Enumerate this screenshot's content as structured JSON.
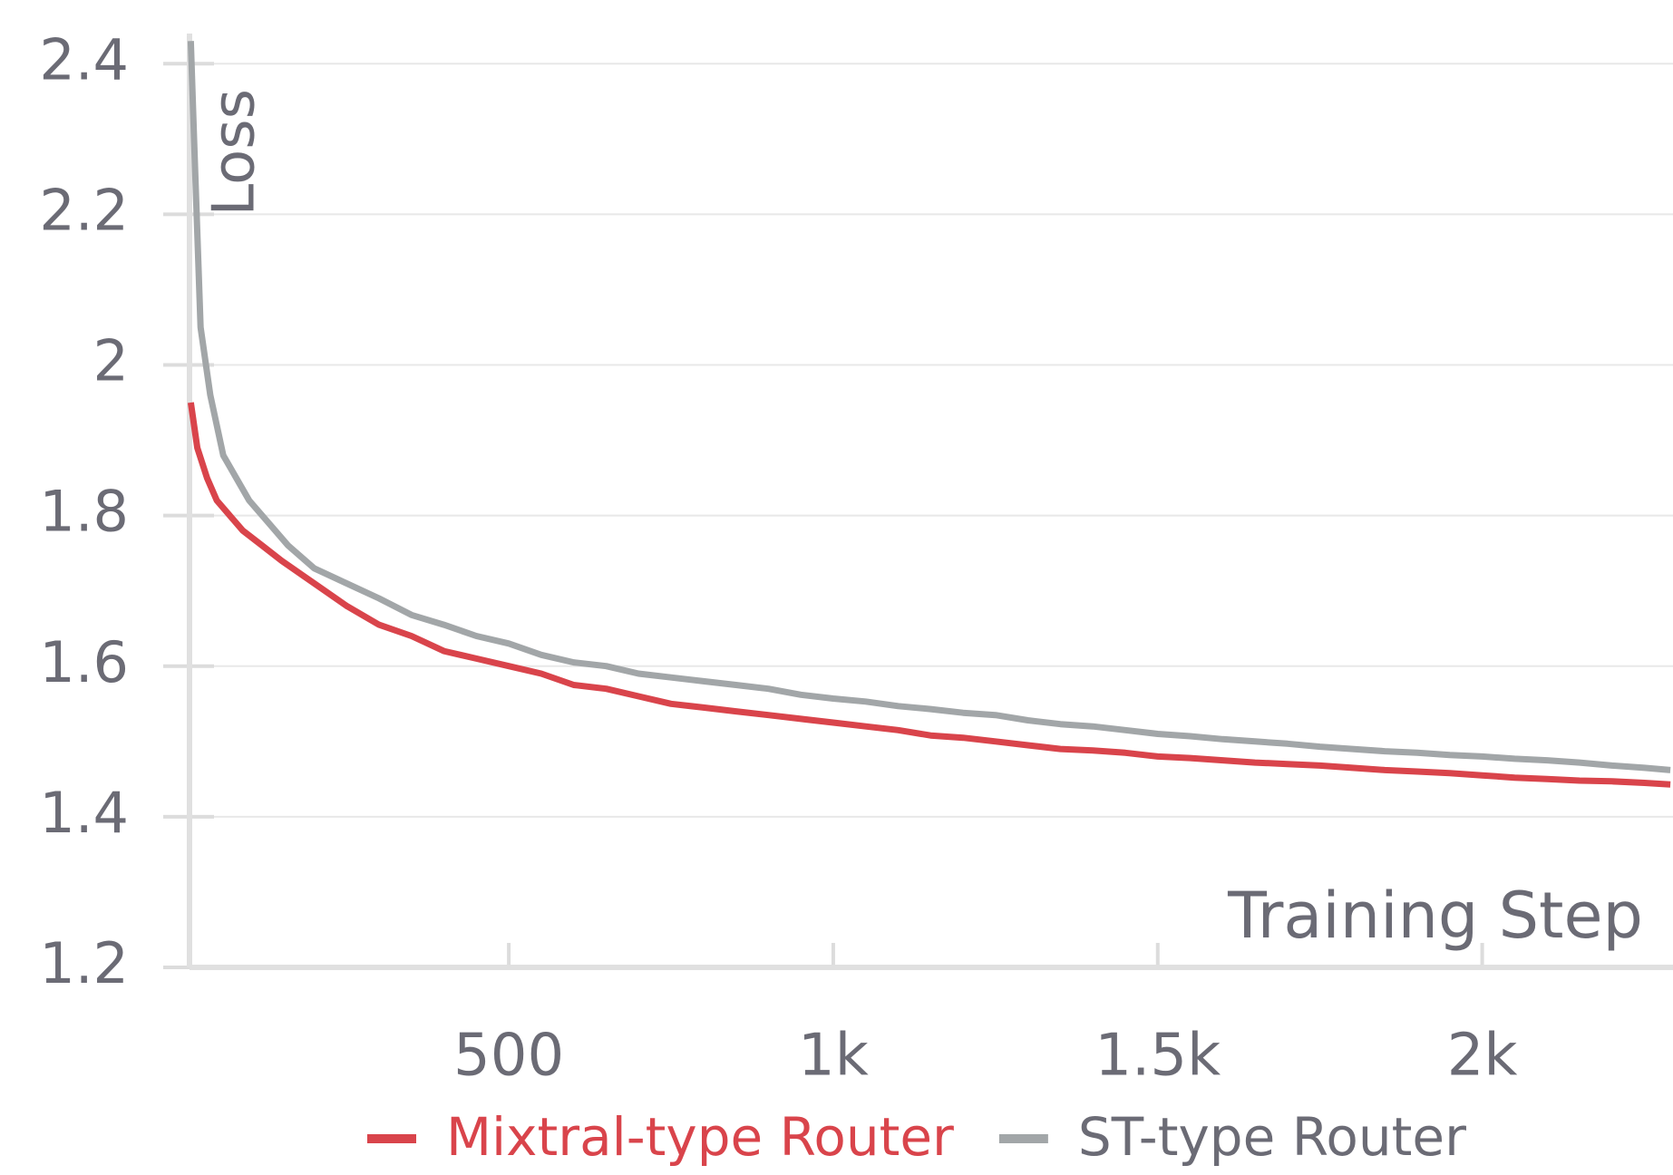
{
  "chart_data": {
    "type": "line",
    "x_label": "Training Step",
    "y_label": "Loss",
    "xlim": [
      8,
      2294
    ],
    "ylim": [
      1.2,
      2.44
    ],
    "xticks": [
      500,
      {
        "value": 1000,
        "label": "1k"
      },
      {
        "value": 1500,
        "label": "1.5k"
      },
      {
        "value": 2000,
        "label": "2k"
      }
    ],
    "yticks": [
      1.2,
      1.4,
      1.6,
      1.8,
      2,
      2.2,
      2.4
    ],
    "grid": true,
    "legend": "bottom",
    "series": [
      {
        "name": "Mixtral-type Router",
        "color": "#d9444b",
        "x": [
          10,
          20,
          35,
          50,
          70,
          90,
          120,
          150,
          200,
          250,
          300,
          350,
          400,
          450,
          500,
          550,
          600,
          650,
          700,
          750,
          800,
          850,
          900,
          950,
          1000,
          1050,
          1100,
          1150,
          1200,
          1250,
          1300,
          1350,
          1400,
          1450,
          1500,
          1550,
          1600,
          1650,
          1700,
          1750,
          1800,
          1850,
          1900,
          1950,
          2000,
          2050,
          2100,
          2150,
          2200,
          2250,
          2290
        ],
        "values": [
          1.95,
          1.89,
          1.85,
          1.82,
          1.8,
          1.78,
          1.76,
          1.74,
          1.71,
          1.68,
          1.655,
          1.64,
          1.62,
          1.61,
          1.6,
          1.59,
          1.575,
          1.57,
          1.56,
          1.55,
          1.545,
          1.54,
          1.535,
          1.53,
          1.525,
          1.52,
          1.515,
          1.508,
          1.505,
          1.5,
          1.495,
          1.49,
          1.488,
          1.485,
          1.48,
          1.478,
          1.475,
          1.472,
          1.47,
          1.468,
          1.465,
          1.462,
          1.46,
          1.458,
          1.455,
          1.452,
          1.45,
          1.448,
          1.447,
          1.445,
          1.443
        ]
      },
      {
        "name": "ST-type Router",
        "color": "#a2a6a8",
        "x": [
          10,
          15,
          25,
          40,
          60,
          80,
          100,
          130,
          160,
          200,
          250,
          300,
          350,
          400,
          450,
          500,
          550,
          600,
          650,
          700,
          750,
          800,
          850,
          900,
          950,
          1000,
          1050,
          1100,
          1150,
          1200,
          1250,
          1300,
          1350,
          1400,
          1450,
          1500,
          1550,
          1600,
          1650,
          1700,
          1750,
          1800,
          1850,
          1900,
          1950,
          2000,
          2050,
          2100,
          2150,
          2200,
          2250,
          2290
        ],
        "values": [
          2.43,
          2.3,
          2.05,
          1.96,
          1.88,
          1.85,
          1.82,
          1.79,
          1.76,
          1.73,
          1.71,
          1.69,
          1.668,
          1.655,
          1.64,
          1.63,
          1.615,
          1.605,
          1.6,
          1.59,
          1.585,
          1.58,
          1.575,
          1.57,
          1.562,
          1.557,
          1.553,
          1.547,
          1.543,
          1.538,
          1.535,
          1.528,
          1.523,
          1.52,
          1.515,
          1.51,
          1.507,
          1.503,
          1.5,
          1.497,
          1.493,
          1.49,
          1.487,
          1.485,
          1.482,
          1.48,
          1.477,
          1.475,
          1.472,
          1.468,
          1.465,
          1.462
        ]
      }
    ]
  }
}
